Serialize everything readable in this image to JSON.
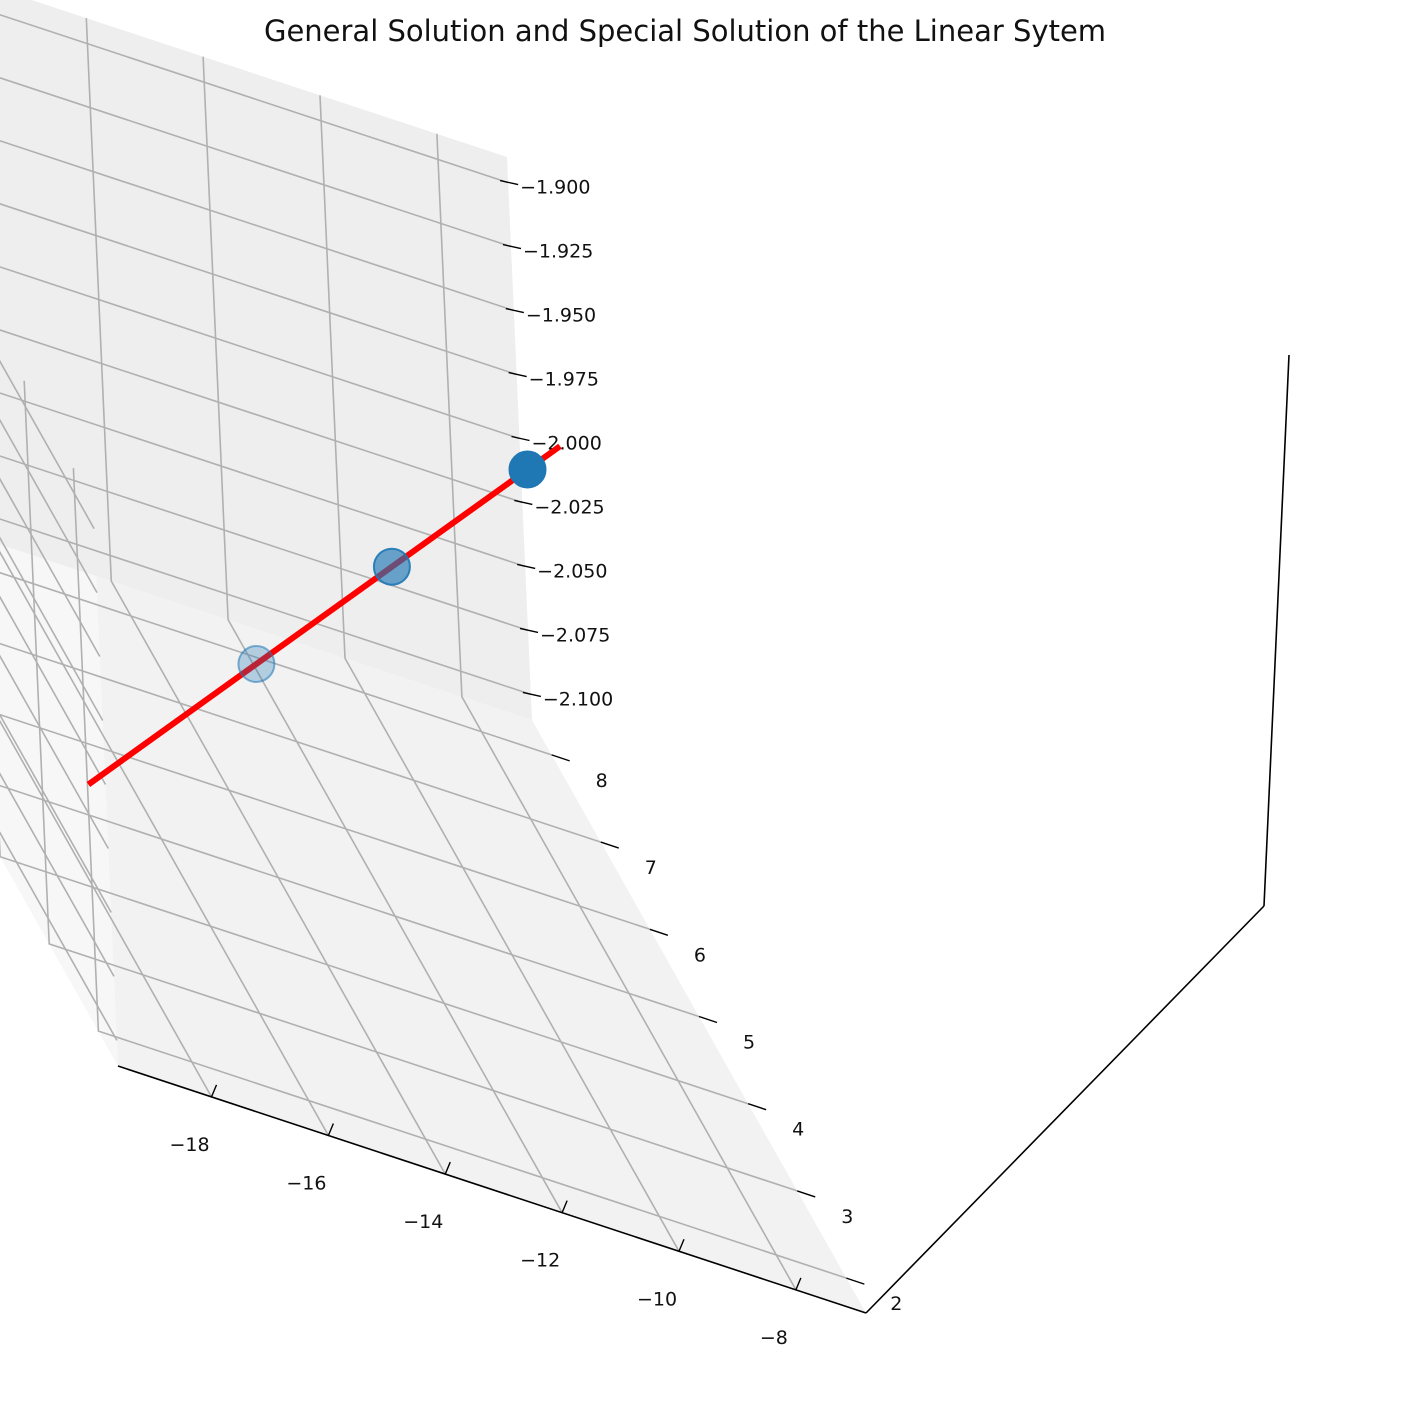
{
  "chart_data": {
    "type": "line",
    "projection": "3d",
    "title": "General Solution and Special Solution of the Linear Sytem",
    "xlabel": "",
    "ylabel": "",
    "zlabel": "",
    "grid": true,
    "x_ticks": [
      "−18",
      "−16",
      "−14",
      "−12",
      "−10",
      "−8"
    ],
    "y_ticks": [
      "2",
      "3",
      "4",
      "5",
      "6",
      "7",
      "8"
    ],
    "z_ticks": [
      "−1.900",
      "−1.925",
      "−1.950",
      "−1.975",
      "−2.000",
      "−2.025",
      "−2.050",
      "−2.075",
      "−2.100"
    ],
    "xlim": [
      -19.6,
      -6.8
    ],
    "ylim": [
      1.6,
      8.4
    ],
    "zlim": [
      -2.11,
      -1.89
    ],
    "line": {
      "color": "#ff0000",
      "x": [
        -19,
        -7
      ],
      "y": [
        2,
        8
      ],
      "z": [
        -2,
        -2
      ]
    },
    "points": {
      "color": "#1f77b4",
      "x": [
        -15,
        -11,
        -7
      ],
      "y": [
        4,
        6,
        8
      ],
      "z": [
        -2,
        -2,
        -2
      ]
    }
  }
}
